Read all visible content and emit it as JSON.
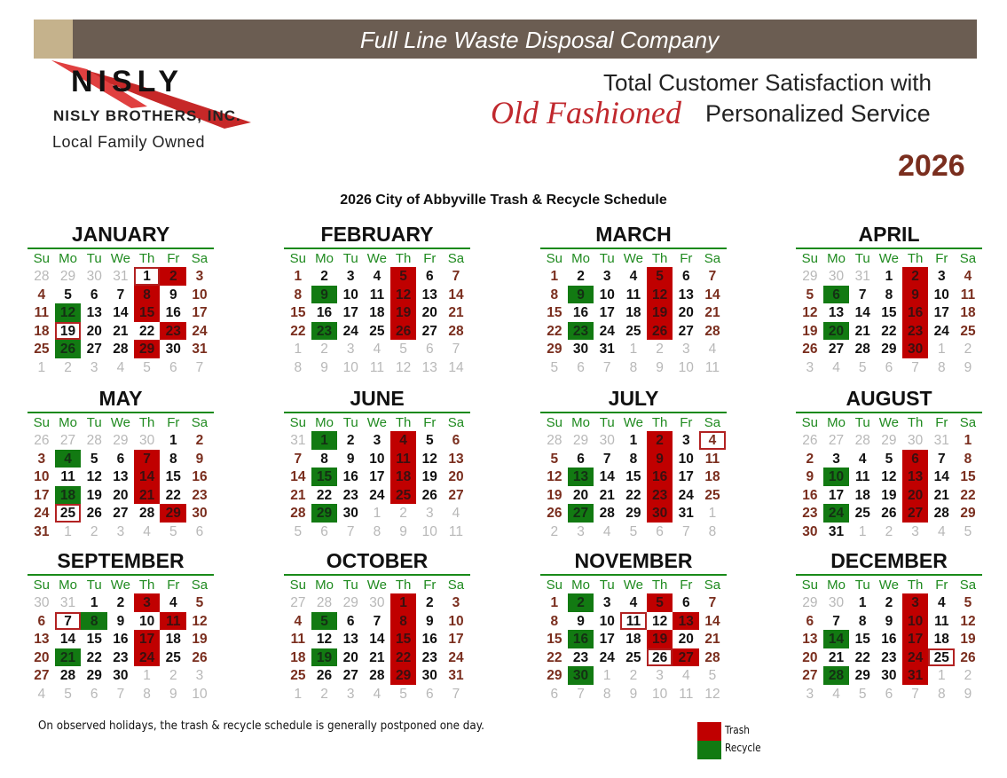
{
  "header": {
    "banner": "Full Line Waste Disposal Company",
    "logo_text": "NISLY",
    "company": "NISLY BROTHERS, INC.",
    "tagline_owned": "Local Family Owned",
    "slogan_line1": "Total Customer Satisfaction with",
    "slogan_script": "Old Fashioned",
    "slogan_line2": "Personalized Service",
    "year": "2026"
  },
  "title": "2026 City of Abbyville Trash & Recycle Schedule",
  "weekday_headers": [
    "Su",
    "Mo",
    "Tu",
    "We",
    "Th",
    "Fr",
    "Sa"
  ],
  "colors": {
    "trash": "#c00000",
    "recycle": "#127a12",
    "holiday_outline": "#b22222",
    "weekend": "#7a2e1e",
    "header_green": "#1f8a1f"
  },
  "months": [
    {
      "name": "JANUARY",
      "lead": 4,
      "days": 31,
      "weeks": [
        "28 29 30 31 1 2 3",
        "4 5 6 7 8 9 10",
        "11 12 13 14 15 16 17",
        "18 19 20 21 22 23 24",
        "25 26 27 28 29 30 31",
        "1 2 3 4 5 6 7"
      ],
      "trash": [
        2,
        8,
        15,
        23,
        29
      ],
      "recycle": [
        12,
        26
      ],
      "holiday": [
        1,
        19
      ]
    },
    {
      "name": "FEBRUARY",
      "lead": 0,
      "days": 28,
      "weeks": [
        "1 2 3 4 5 6 7",
        "8 9 10 11 12 13 14",
        "15 16 17 18 19 20 21",
        "22 23 24 25 26 27 28",
        "1 2 3 4 5 6 7",
        "8 9 10 11 12 13 14"
      ],
      "trash": [
        5,
        12,
        19,
        26
      ],
      "recycle": [
        9,
        23
      ],
      "holiday": []
    },
    {
      "name": "MARCH",
      "lead": 0,
      "days": 31,
      "weeks": [
        "1 2 3 4 5 6 7",
        "8 9 10 11 12 13 14",
        "15 16 17 18 19 20 21",
        "22 23 24 25 26 27 28",
        "29 30 31 1 2 3 4",
        "5 6 7 8 9 10 11"
      ],
      "trash": [
        5,
        12,
        19,
        26
      ],
      "recycle": [
        9,
        23
      ],
      "holiday": []
    },
    {
      "name": "APRIL",
      "lead": 3,
      "days": 30,
      "weeks": [
        "29 30 31 1 2 3 4",
        "5 6 7 8 9 10 11",
        "12 13 14 15 16 17 18",
        "19 20 21 22 23 24 25",
        "26 27 28 29 30 1 2",
        "3 4 5 6 7 8 9"
      ],
      "trash": [
        2,
        9,
        16,
        23,
        30
      ],
      "recycle": [
        6,
        20
      ],
      "holiday": []
    },
    {
      "name": "MAY",
      "lead": 5,
      "days": 31,
      "weeks": [
        "26 27 28 29 30 1 2",
        "3 4 5 6 7 8 9",
        "10 11 12 13 14 15 16",
        "17 18 19 20 21 22 23",
        "24 25 26 27 28 29 30",
        "31 1 2 3 4 5 6"
      ],
      "trash": [
        7,
        14,
        21,
        29
      ],
      "recycle": [
        4,
        18
      ],
      "holiday": [
        25
      ]
    },
    {
      "name": "JUNE",
      "lead": 1,
      "days": 30,
      "weeks": [
        "31 1 2 3 4 5 6",
        "7 8 9 10 11 12 13",
        "14 15 16 17 18 19 20",
        "21 22 23 24 25 26 27",
        "28 29 30 1 2 3 4",
        "5 6 7 8 9 10 11"
      ],
      "trash": [
        4,
        11,
        18,
        25
      ],
      "recycle": [
        1,
        15,
        29
      ],
      "holiday": []
    },
    {
      "name": "JULY",
      "lead": 3,
      "days": 31,
      "weeks": [
        "28 29 30 1 2 3 4",
        "5 6 7 8 9 10 11",
        "12 13 14 15 16 17 18",
        "19 20 21 22 23 24 25",
        "26 27 28 29 30 31 1",
        "2 3 4 5 6 7 8"
      ],
      "trash": [
        2,
        9,
        16,
        23,
        30
      ],
      "recycle": [
        13,
        27
      ],
      "holiday": [
        4
      ]
    },
    {
      "name": "AUGUST",
      "lead": 6,
      "days": 31,
      "weeks": [
        "26 27 28 29 30 31 1",
        "2 3 4 5 6 7 8",
        "9 10 11 12 13 14 15",
        "16 17 18 19 20 21 22",
        "23 24 25 26 27 28 29",
        "30 31 1 2 3 4 5"
      ],
      "trash": [
        6,
        13,
        20,
        27
      ],
      "recycle": [
        10,
        24
      ],
      "holiday": []
    },
    {
      "name": "SEPTEMBER",
      "lead": 2,
      "days": 30,
      "weeks": [
        "30 31 1 2 3 4 5",
        "6 7 8 9 10 11 12",
        "13 14 15 16 17 18 19",
        "20 21 22 23 24 25 26",
        "27 28 29 30 1 2 3",
        "4 5 6 7 8 9 10"
      ],
      "trash": [
        3,
        11,
        17,
        24
      ],
      "recycle": [
        8,
        21
      ],
      "holiday": [
        7
      ]
    },
    {
      "name": "OCTOBER",
      "lead": 4,
      "days": 31,
      "weeks": [
        "27 28 29 30 1 2 3",
        "4 5 6 7 8 9 10",
        "11 12 13 14 15 16 17",
        "18 19 20 21 22 23 24",
        "25 26 27 28 29 30 31",
        "1 2 3 4 5 6 7"
      ],
      "trash": [
        1,
        8,
        15,
        22,
        29
      ],
      "recycle": [
        5,
        19
      ],
      "holiday": []
    },
    {
      "name": "NOVEMBER",
      "lead": 0,
      "days": 30,
      "weeks": [
        "1 2 3 4 5 6 7",
        "8 9 10 11 12 13 14",
        "15 16 17 18 19 20 21",
        "22 23 24 25 26 27 28",
        "29 30 1 2 3 4 5",
        "6 7 8 9 10 11 12"
      ],
      "trash": [
        5,
        13,
        19,
        27
      ],
      "recycle": [
        2,
        16,
        30
      ],
      "holiday": [
        11,
        26
      ]
    },
    {
      "name": "DECEMBER",
      "lead": 2,
      "days": 31,
      "weeks": [
        "29 30 1 2 3 4 5",
        "6 7 8 9 10 11 12",
        "13 14 15 16 17 18 19",
        "20 21 22 23 24 25 26",
        "27 28 29 30 31 1 2",
        "3 4 5 6 7 8 9"
      ],
      "trash": [
        3,
        10,
        17,
        24,
        31
      ],
      "recycle": [
        14,
        28
      ],
      "holiday": [
        25
      ]
    }
  ],
  "footer": {
    "note": "On observed holidays, the trash & recycle schedule is generally postponed one day.",
    "legend": [
      {
        "label": "Trash",
        "color": "#c00000"
      },
      {
        "label": "Recycle",
        "color": "#127a12"
      }
    ]
  }
}
